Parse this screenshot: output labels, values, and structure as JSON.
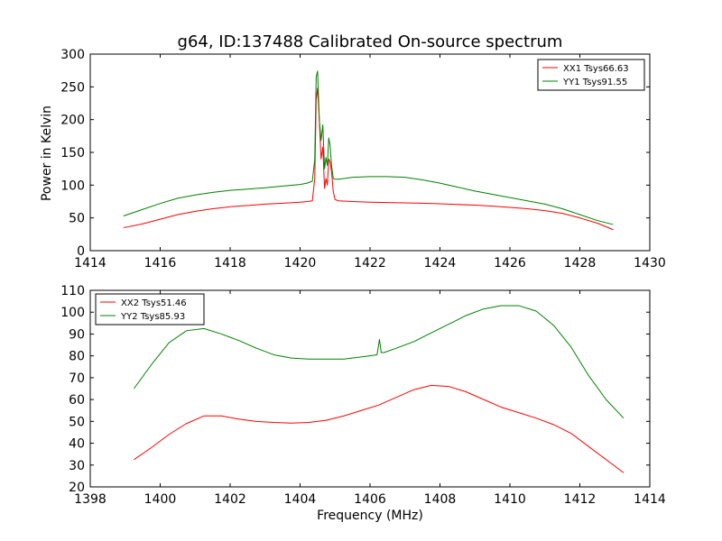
{
  "figure": {
    "title": "g64, ID:137488 Calibrated On-source spectrum",
    "xlabel": "Frequency (MHz)"
  },
  "chart_data": [
    {
      "type": "line",
      "title": "g64, ID:137488 Calibrated On-source spectrum",
      "xlabel": "",
      "ylabel": "Power in Kelvin",
      "xlim": [
        1414,
        1430
      ],
      "ylim": [
        0,
        300
      ],
      "xticks": [
        1414,
        1416,
        1418,
        1420,
        1422,
        1424,
        1426,
        1428,
        1430
      ],
      "yticks": [
        0,
        50,
        100,
        150,
        200,
        250,
        300
      ],
      "grid": false,
      "legend": "top-right",
      "series": [
        {
          "name": "XX1 Tsys66.63",
          "color": "#ff0000",
          "x": [
            1414.95,
            1415.5,
            1416,
            1416.5,
            1417,
            1417.5,
            1418,
            1418.5,
            1419,
            1419.5,
            1420,
            1420.2,
            1420.35,
            1420.42,
            1420.46,
            1420.5,
            1420.55,
            1420.6,
            1420.65,
            1420.7,
            1420.74,
            1420.78,
            1420.82,
            1420.86,
            1420.9,
            1420.95,
            1421.0,
            1421.1,
            1421.5,
            1422,
            1422.5,
            1423,
            1423.5,
            1424,
            1424.5,
            1425,
            1425.5,
            1426,
            1426.5,
            1427,
            1427.5,
            1428,
            1428.5,
            1428.95
          ],
          "y": [
            35,
            41,
            48,
            55,
            60,
            64,
            67,
            69,
            71,
            72.5,
            74,
            75,
            76,
            110,
            230,
            248,
            200,
            140,
            158,
            95,
            110,
            100,
            140,
            135,
            120,
            90,
            78,
            76,
            75,
            74,
            73.5,
            73,
            72.5,
            71.5,
            70.5,
            69.5,
            68,
            66,
            64,
            61,
            57,
            50,
            42,
            32
          ]
        },
        {
          "name": "YY1 Tsys91.55",
          "color": "#008000",
          "x": [
            1414.95,
            1415.5,
            1416,
            1416.5,
            1417,
            1417.5,
            1418,
            1418.5,
            1419,
            1419.5,
            1420,
            1420.2,
            1420.35,
            1420.42,
            1420.46,
            1420.5,
            1420.55,
            1420.6,
            1420.65,
            1420.7,
            1420.74,
            1420.78,
            1420.82,
            1420.86,
            1420.9,
            1420.95,
            1421.0,
            1421.1,
            1421.5,
            1422,
            1422.5,
            1423,
            1423.5,
            1424,
            1424.5,
            1425,
            1425.5,
            1426,
            1426.5,
            1427,
            1427.5,
            1428,
            1428.5,
            1428.95
          ],
          "y": [
            53,
            63,
            72,
            80,
            85,
            89,
            92,
            94,
            96,
            98.5,
            101,
            103,
            106,
            140,
            265,
            274,
            200,
            168,
            192,
            125,
            142,
            130,
            172,
            160,
            130,
            110,
            109,
            109,
            112,
            113,
            113,
            112,
            108,
            103,
            97,
            91,
            86,
            81,
            76,
            71,
            64,
            55,
            46,
            40
          ]
        }
      ]
    },
    {
      "type": "line",
      "title": "",
      "xlabel": "Frequency (MHz)",
      "ylabel": "",
      "xlim": [
        1398,
        1414
      ],
      "ylim": [
        20,
        110
      ],
      "xticks": [
        1398,
        1400,
        1402,
        1404,
        1406,
        1408,
        1410,
        1412,
        1414
      ],
      "yticks": [
        20,
        30,
        40,
        50,
        60,
        70,
        80,
        90,
        100,
        110
      ],
      "grid": false,
      "legend": "top-left",
      "series": [
        {
          "name": "XX2 Tsys51.46",
          "color": "#ff0000",
          "x": [
            1399.25,
            1399.75,
            1400.25,
            1400.75,
            1401.25,
            1401.75,
            1402.25,
            1402.75,
            1403.25,
            1403.75,
            1404.25,
            1404.75,
            1405.25,
            1405.75,
            1406.25,
            1406.75,
            1407.25,
            1407.75,
            1408.25,
            1408.75,
            1409.25,
            1409.75,
            1410.25,
            1410.75,
            1411.25,
            1411.75,
            1412.25,
            1412.75,
            1413.25
          ],
          "y": [
            32.5,
            38,
            44,
            49,
            52.5,
            52.5,
            51,
            50,
            49.5,
            49.2,
            49.5,
            50.5,
            52.5,
            55,
            57.5,
            61,
            64.5,
            66.5,
            66,
            63.5,
            60,
            56.5,
            54,
            51.5,
            48.5,
            44.5,
            38.5,
            32.5,
            26.5
          ]
        },
        {
          "name": "YY2 Tsys85.93",
          "color": "#008000",
          "x": [
            1399.25,
            1399.75,
            1400.25,
            1400.75,
            1401.25,
            1401.75,
            1402.25,
            1402.75,
            1403.25,
            1403.75,
            1404.25,
            1404.75,
            1405.25,
            1405.75,
            1406.2,
            1406.27,
            1406.32,
            1406.4,
            1406.75,
            1407.25,
            1407.75,
            1408.25,
            1408.75,
            1409.25,
            1409.75,
            1410.25,
            1410.75,
            1411.25,
            1411.75,
            1412.25,
            1412.75,
            1413.25
          ],
          "y": [
            65,
            76,
            86,
            91.5,
            92.5,
            90,
            87,
            83.5,
            80.5,
            79,
            78.5,
            78.5,
            78.5,
            79.5,
            80.5,
            87.5,
            81.5,
            81.5,
            83.5,
            86.5,
            90.5,
            94.5,
            98.5,
            101.5,
            103,
            103,
            100.5,
            94,
            84,
            71,
            60,
            51.5
          ]
        }
      ]
    }
  ]
}
